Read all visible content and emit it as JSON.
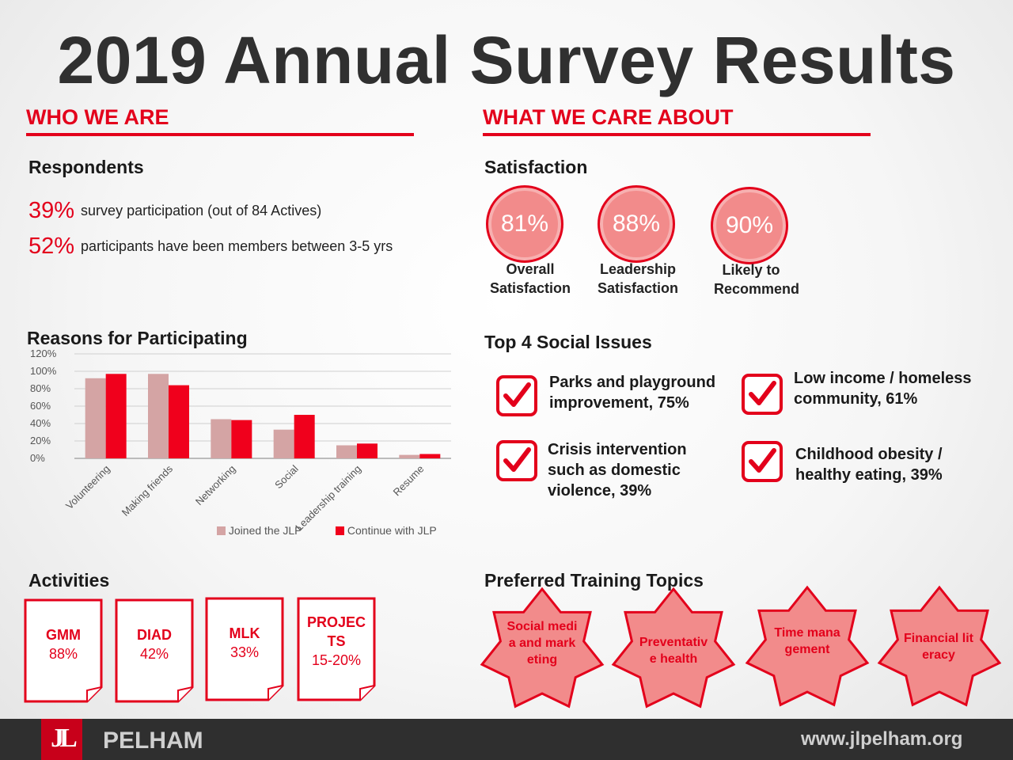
{
  "title": "2019 Annual Survey Results",
  "who": {
    "heading": "WHO WE ARE",
    "respondents_heading": "Respondents",
    "stats": [
      {
        "pct": "39%",
        "text": "survey participation (out of 84 Actives)"
      },
      {
        "pct": "52%",
        "text": "participants have been members between 3-5 yrs"
      }
    ],
    "reasons_heading": "Reasons for Participating",
    "activities_heading": "Activities",
    "activities": [
      {
        "name": "GMM",
        "value": "88%"
      },
      {
        "name": "DIAD",
        "value": "42%"
      },
      {
        "name": "MLK",
        "value": "33%"
      },
      {
        "name": "PROJECTS",
        "value": "15-20%"
      }
    ]
  },
  "care": {
    "heading": "WHAT WE CARE ABOUT",
    "satisfaction_heading": "Satisfaction",
    "satisfaction": [
      {
        "pct": "81%",
        "label": "Overall Satisfaction"
      },
      {
        "pct": "88%",
        "label": "Leadership Satisfaction"
      },
      {
        "pct": "90%",
        "label": "Likely to Recommend"
      }
    ],
    "issues_heading": "Top 4 Social Issues",
    "issues": [
      "Parks and playground improvement, 75%",
      "Low income / homeless community, 61%",
      "Crisis intervention such as domestic violence, 39%",
      "Childhood obesity / healthy eating, 39%"
    ],
    "training_heading": "Preferred Training Topics",
    "training": [
      "Social media and marketing",
      "Preventative health",
      "Time management",
      "Financial literacy"
    ]
  },
  "chart_data": {
    "type": "bar",
    "categories": [
      "Volunteering",
      "Making friends",
      "Networking",
      "Social",
      "Leadership training",
      "Resume"
    ],
    "series": [
      {
        "name": "Joined the JLP",
        "values": [
          92,
          97,
          45,
          33,
          15,
          4
        ]
      },
      {
        "name": "Continue with JLP",
        "values": [
          97,
          84,
          44,
          50,
          17,
          5
        ]
      }
    ],
    "ylim": [
      0,
      120
    ],
    "yticks": [
      "0%",
      "20%",
      "40%",
      "60%",
      "80%",
      "100%",
      "120%"
    ],
    "grid": true,
    "legend": "bottom-right",
    "colors": [
      "#d4a4a4",
      "#f0001c"
    ]
  },
  "footer": {
    "logo": "JL",
    "brand": "PELHAM",
    "url": "www.jlpelham.org"
  },
  "colors": {
    "accent": "#e3001b",
    "footer": "#2f2f2f"
  }
}
